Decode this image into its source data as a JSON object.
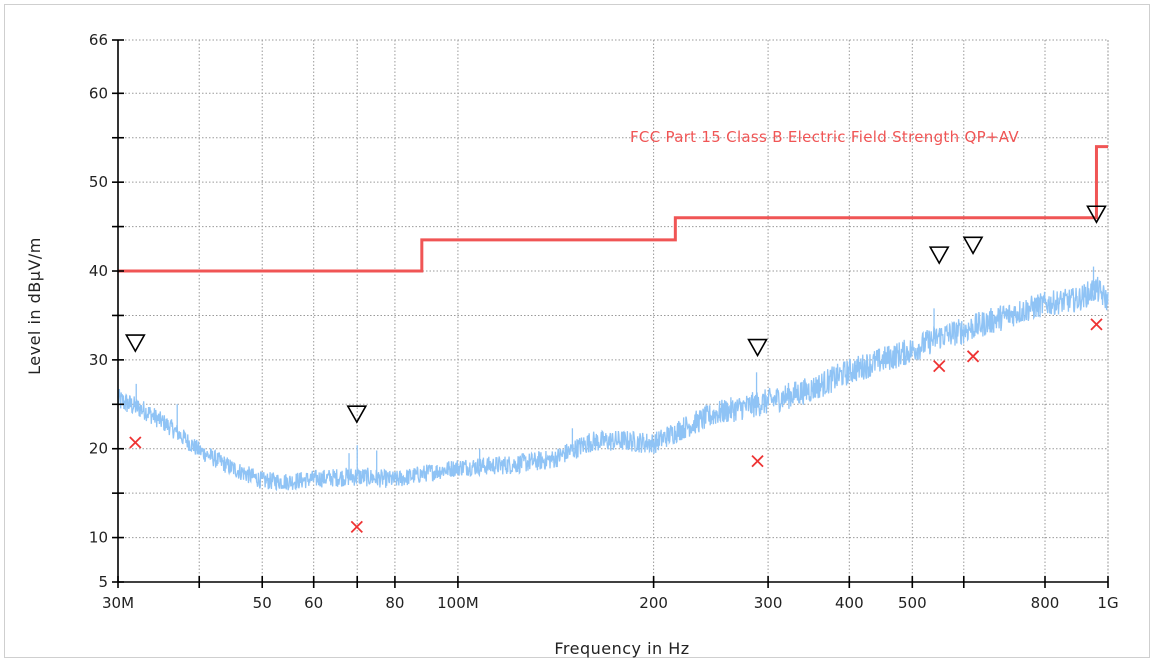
{
  "chart_data": {
    "type": "line",
    "xlabel": "Frequency in Hz",
    "ylabel": "Level in dBµV/m",
    "x_scale": "log",
    "xlim": [
      30000000,
      1000000000
    ],
    "ylim": [
      5,
      66
    ],
    "grid": true,
    "x_ticks": [
      {
        "value": 30000000,
        "label": "30M"
      },
      {
        "value": 40000000,
        "label": ""
      },
      {
        "value": 50000000,
        "label": "50"
      },
      {
        "value": 60000000,
        "label": "60"
      },
      {
        "value": 70000000,
        "label": ""
      },
      {
        "value": 80000000,
        "label": "80"
      },
      {
        "value": 100000000,
        "label": "100M"
      },
      {
        "value": 200000000,
        "label": "200"
      },
      {
        "value": 300000000,
        "label": "300"
      },
      {
        "value": 400000000,
        "label": "400"
      },
      {
        "value": 500000000,
        "label": "500"
      },
      {
        "value": 600000000,
        "label": ""
      },
      {
        "value": 800000000,
        "label": "800"
      },
      {
        "value": 1000000000,
        "label": "1G"
      }
    ],
    "y_ticks": [
      {
        "value": 5,
        "label": "5"
      },
      {
        "value": 10,
        "label": "10"
      },
      {
        "value": 15,
        "label": ""
      },
      {
        "value": 20,
        "label": "20"
      },
      {
        "value": 25,
        "label": ""
      },
      {
        "value": 30,
        "label": "30"
      },
      {
        "value": 35,
        "label": ""
      },
      {
        "value": 40,
        "label": "40"
      },
      {
        "value": 45,
        "label": ""
      },
      {
        "value": 50,
        "label": "50"
      },
      {
        "value": 55,
        "label": ""
      },
      {
        "value": 60,
        "label": "60"
      },
      {
        "value": 66,
        "label": "66"
      }
    ],
    "limit_line": {
      "name": "FCC Part 15 Class B Electric Field Strength QP+AV",
      "color": "#f05555",
      "x": [
        30000000,
        88000000,
        88000000,
        216000000,
        216000000,
        960000000,
        960000000,
        1000000000
      ],
      "y": [
        40,
        40,
        43.5,
        43.5,
        46,
        46,
        54,
        54
      ]
    },
    "trace": {
      "color": "#8fc3f5",
      "envelope": [
        {
          "f": 30000000,
          "mid": 25.5,
          "hw": 1.3
        },
        {
          "f": 33000000,
          "mid": 24.3,
          "hw": 1.1
        },
        {
          "f": 36000000,
          "mid": 22.5,
          "hw": 1.0
        },
        {
          "f": 40000000,
          "mid": 19.8,
          "hw": 1.0
        },
        {
          "f": 45000000,
          "mid": 17.8,
          "hw": 1.0
        },
        {
          "f": 50000000,
          "mid": 16.4,
          "hw": 1.0
        },
        {
          "f": 55000000,
          "mid": 16.3,
          "hw": 1.0
        },
        {
          "f": 60000000,
          "mid": 16.6,
          "hw": 1.0
        },
        {
          "f": 70000000,
          "mid": 16.9,
          "hw": 1.1
        },
        {
          "f": 80000000,
          "mid": 16.5,
          "hw": 1.0
        },
        {
          "f": 90000000,
          "mid": 17.3,
          "hw": 1.0
        },
        {
          "f": 100000000,
          "mid": 17.9,
          "hw": 1.0
        },
        {
          "f": 120000000,
          "mid": 18.2,
          "hw": 1.1
        },
        {
          "f": 140000000,
          "mid": 18.8,
          "hw": 1.1
        },
        {
          "f": 160000000,
          "mid": 20.8,
          "hw": 1.2
        },
        {
          "f": 180000000,
          "mid": 20.9,
          "hw": 1.2
        },
        {
          "f": 200000000,
          "mid": 20.6,
          "hw": 1.2
        },
        {
          "f": 220000000,
          "mid": 22.2,
          "hw": 1.3
        },
        {
          "f": 250000000,
          "mid": 24.0,
          "hw": 1.4
        },
        {
          "f": 300000000,
          "mid": 25.3,
          "hw": 1.5
        },
        {
          "f": 350000000,
          "mid": 26.7,
          "hw": 1.5
        },
        {
          "f": 400000000,
          "mid": 28.7,
          "hw": 1.5
        },
        {
          "f": 450000000,
          "mid": 30.0,
          "hw": 1.5
        },
        {
          "f": 500000000,
          "mid": 31.1,
          "hw": 1.5
        },
        {
          "f": 550000000,
          "mid": 32.6,
          "hw": 1.5
        },
        {
          "f": 600000000,
          "mid": 33.3,
          "hw": 1.5
        },
        {
          "f": 700000000,
          "mid": 35.0,
          "hw": 1.5
        },
        {
          "f": 800000000,
          "mid": 36.3,
          "hw": 1.4
        },
        {
          "f": 900000000,
          "mid": 36.8,
          "hw": 1.4
        },
        {
          "f": 960000000,
          "mid": 38.0,
          "hw": 1.5
        },
        {
          "f": 1000000000,
          "mid": 36.6,
          "hw": 1.3
        }
      ],
      "spikes": [
        {
          "f": 32000000,
          "y": 27.3
        },
        {
          "f": 37000000,
          "y": 25.0
        },
        {
          "f": 68000000,
          "y": 19.5
        },
        {
          "f": 70000000,
          "y": 20.4
        },
        {
          "f": 75000000,
          "y": 19.8
        },
        {
          "f": 108000000,
          "y": 20.0
        },
        {
          "f": 150000000,
          "y": 22.3
        },
        {
          "f": 288000000,
          "y": 28.6
        },
        {
          "f": 540000000,
          "y": 35.8
        },
        {
          "f": 950000000,
          "y": 40.5
        }
      ]
    },
    "peak_markers": {
      "symbol": "down-triangle",
      "color": "#000000",
      "points": [
        {
          "x": 31900000,
          "y": 32.0
        },
        {
          "x": 69900000,
          "y": 24.0
        },
        {
          "x": 289000000,
          "y": 31.5
        },
        {
          "x": 550000000,
          "y": 41.9
        },
        {
          "x": 620000000,
          "y": 43.0
        },
        {
          "x": 960000000,
          "y": 46.5
        }
      ]
    },
    "measured_markers": {
      "symbol": "x",
      "color": "#ee3333",
      "points": [
        {
          "x": 31900000,
          "y": 20.7
        },
        {
          "x": 69900000,
          "y": 11.2
        },
        {
          "x": 289000000,
          "y": 18.6
        },
        {
          "x": 550000000,
          "y": 29.3
        },
        {
          "x": 620000000,
          "y": 30.4
        },
        {
          "x": 960000000,
          "y": 34.0
        }
      ]
    }
  }
}
